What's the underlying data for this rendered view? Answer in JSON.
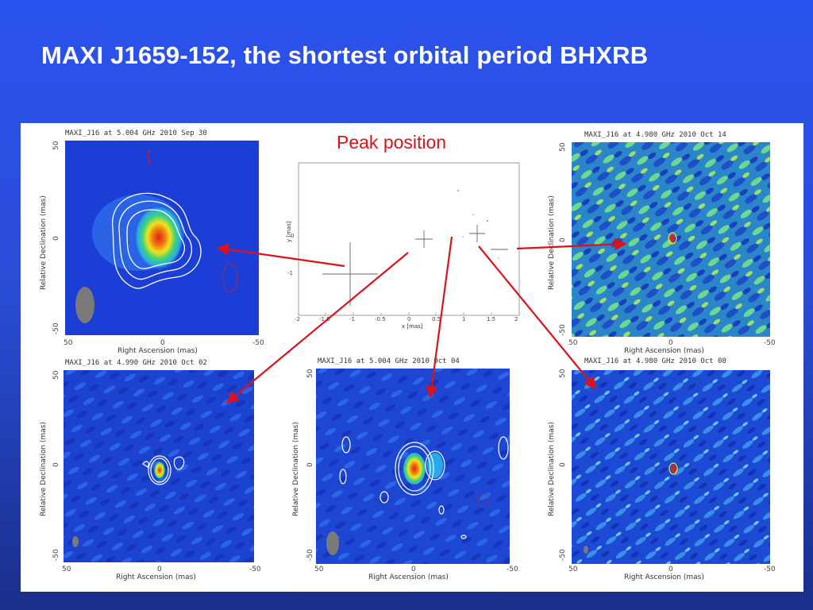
{
  "slide": {
    "title": "MAXI J1659-152, the shortest orbital period BHXRB"
  },
  "colors": {
    "background": "#2a52ee",
    "arrow": "#e0101a",
    "map_blue": "#1b3fd6",
    "map_core": "#e0221a"
  },
  "peak_plot": {
    "label": "Peak position",
    "xlabel": "x [mas]",
    "ylabel": "y [mas]",
    "x_ticks": [
      "-2",
      "-1.5",
      "-1",
      "-0.5",
      "0",
      "0.5",
      "1",
      "1.5",
      "2"
    ],
    "y_ticks": [
      "0",
      "-1"
    ]
  },
  "maps": {
    "top_left": {
      "title": "MAXI_J16 at 5.004 GHz 2010 Sep 30",
      "xlabel": "Right Ascension (mas)",
      "ylabel": "Relative Declination (mas)",
      "x_ticks": [
        "50",
        "0",
        "-50"
      ],
      "y_ticks": [
        "50",
        "0",
        "-50"
      ]
    },
    "top_right": {
      "title": "MAXI_J16 at 4.980 GHz 2010 Oct 14",
      "xlabel": "Right Ascension (mas)",
      "ylabel": "Relative Declination (mas)",
      "x_ticks": [
        "50",
        "0",
        "-50"
      ],
      "y_ticks": [
        "50",
        "0",
        "-50"
      ]
    },
    "bottom_left": {
      "title": "MAXI_J16 at 4.990 GHz 2010 Oct 02",
      "xlabel": "Right Ascension (mas)",
      "ylabel": "Relative Declination (mas)",
      "x_ticks": [
        "50",
        "0",
        "-50"
      ],
      "y_ticks": [
        "50",
        "0",
        "-50"
      ]
    },
    "bottom_middle": {
      "title": "MAXI_J16 at 5.004 GHz 2010 Oct 04",
      "xlabel": "Right Ascension (mas)",
      "ylabel": "Relative Declination (mas)",
      "x_ticks": [
        "50",
        "0",
        "-50"
      ],
      "y_ticks": [
        "50",
        "0",
        "-50"
      ]
    },
    "bottom_right": {
      "title": "MAXI_J16 at 4.980 GHz 2010 Oct 08",
      "xlabel": "Right Ascension (mas)",
      "ylabel": "Relative Declination (mas)",
      "x_ticks": [
        "50",
        "0",
        "-50"
      ],
      "y_ticks": [
        "50",
        "0",
        "-50"
      ]
    }
  }
}
